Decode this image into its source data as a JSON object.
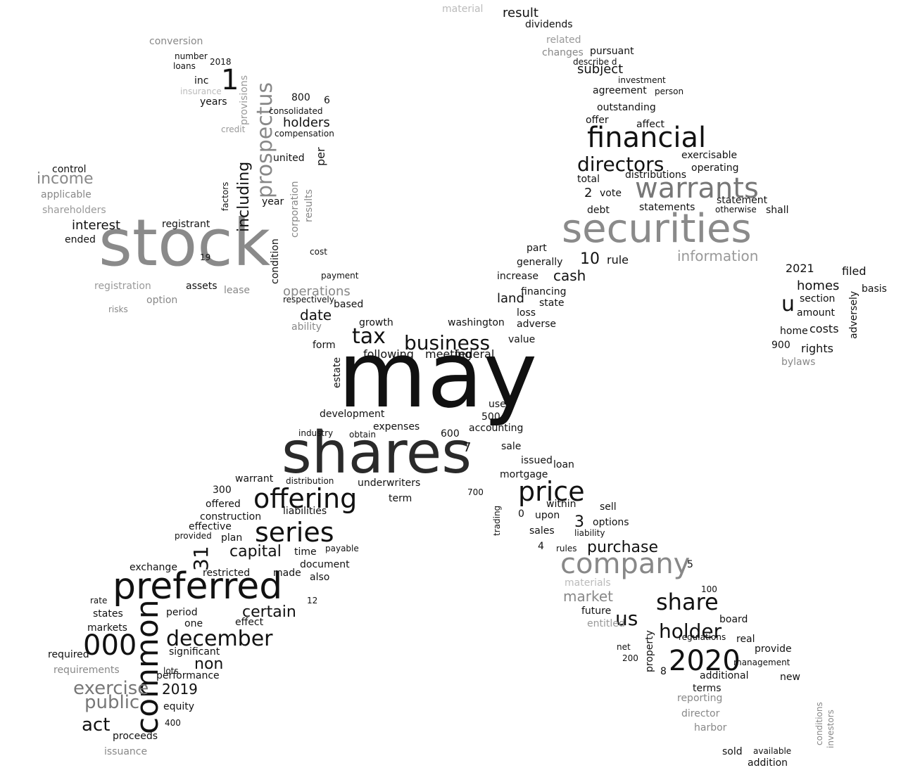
{
  "title": "Word cloud of securities filing terms",
  "colors": {
    "dark": "#111111",
    "mid": "#333333",
    "gray": "#888888",
    "light": "#bbbbbb",
    "background": "#ffffff"
  },
  "words": [
    {
      "text": "may",
      "size": 130,
      "color": "dark"
    },
    {
      "text": "shares",
      "size": 82,
      "color": "dark"
    },
    {
      "text": "stock",
      "size": 92,
      "color": "gray"
    },
    {
      "text": "securities",
      "size": 56,
      "color": "gray"
    },
    {
      "text": "warrants",
      "size": 40,
      "color": "gray"
    },
    {
      "text": "financial",
      "size": 40,
      "color": "dark"
    },
    {
      "text": "company",
      "size": 40,
      "color": "gray"
    },
    {
      "text": "preferred",
      "size": 52,
      "color": "dark"
    },
    {
      "text": "common",
      "size": 44,
      "color": "dark"
    },
    {
      "text": "offering",
      "size": 38,
      "color": "dark"
    },
    {
      "text": "series",
      "size": 38,
      "color": "dark"
    },
    {
      "text": "price",
      "size": 38,
      "color": "dark"
    },
    {
      "text": "000",
      "size": 40,
      "color": "dark"
    },
    {
      "text": "2020",
      "size": 40,
      "color": "dark"
    },
    {
      "text": "december",
      "size": 30,
      "color": "dark"
    },
    {
      "text": "share",
      "size": 32,
      "color": "dark"
    },
    {
      "text": "holder",
      "size": 28,
      "color": "dark"
    },
    {
      "text": "business",
      "size": 28,
      "color": "dark"
    },
    {
      "text": "tax",
      "size": 30,
      "color": "dark"
    },
    {
      "text": "directors",
      "size": 28,
      "color": "dark"
    },
    {
      "text": "exercise",
      "size": 26,
      "color": "gray"
    },
    {
      "text": "public",
      "size": 26,
      "color": "gray"
    },
    {
      "text": "act",
      "size": 26,
      "color": "dark"
    },
    {
      "text": "1",
      "size": 40,
      "color": "dark"
    },
    {
      "text": "prospectus",
      "size": 30,
      "color": "gray"
    },
    {
      "text": "including",
      "size": 22,
      "color": "dark"
    },
    {
      "text": "income",
      "size": 22,
      "color": "gray"
    },
    {
      "text": "u",
      "size": 30,
      "color": "dark"
    },
    {
      "text": "us",
      "size": 28,
      "color": "dark"
    },
    {
      "text": "31",
      "size": 28,
      "color": "dark"
    },
    {
      "text": "capital",
      "size": 22,
      "color": "dark"
    },
    {
      "text": "certain",
      "size": 22,
      "color": "dark"
    },
    {
      "text": "non",
      "size": 22,
      "color": "dark"
    },
    {
      "text": "market",
      "size": 20,
      "color": "gray"
    },
    {
      "text": "information",
      "size": 20,
      "color": "gray"
    },
    {
      "text": "subject",
      "size": 18,
      "color": "dark"
    },
    {
      "text": "result",
      "size": 18,
      "color": "dark"
    },
    {
      "text": "purchase",
      "size": 22,
      "color": "dark"
    },
    {
      "text": "operations",
      "size": 18,
      "color": "gray"
    },
    {
      "text": "date",
      "size": 20,
      "color": "dark"
    },
    {
      "text": "homes",
      "size": 18,
      "color": "dark"
    },
    {
      "text": "cash",
      "size": 20,
      "color": "dark"
    },
    {
      "text": "10",
      "size": 22,
      "color": "dark"
    },
    {
      "text": "2019",
      "size": 20,
      "color": "dark"
    },
    {
      "text": "3",
      "size": 22,
      "color": "dark"
    },
    {
      "text": "land",
      "size": 18,
      "color": "dark"
    },
    {
      "text": "holders",
      "size": 18,
      "color": "dark"
    },
    {
      "text": "interest",
      "size": 18,
      "color": "dark"
    },
    {
      "text": "registration",
      "size": 14,
      "color": "gray"
    },
    {
      "text": "shareholders",
      "size": 14,
      "color": "gray"
    },
    {
      "text": "applicable",
      "size": 14,
      "color": "gray"
    },
    {
      "text": "control",
      "size": 14,
      "color": "dark"
    },
    {
      "text": "conversion",
      "size": 14,
      "color": "gray"
    },
    {
      "text": "dividends",
      "size": 14,
      "color": "dark"
    },
    {
      "text": "outstanding",
      "size": 14,
      "color": "dark"
    },
    {
      "text": "agreement",
      "size": 14,
      "color": "dark"
    },
    {
      "text": "pursuant",
      "size": 14,
      "color": "dark"
    },
    {
      "text": "changes",
      "size": 14,
      "color": "gray"
    },
    {
      "text": "related",
      "size": 14,
      "color": "gray"
    },
    {
      "text": "material",
      "size": 14,
      "color": "light"
    },
    {
      "text": "total",
      "size": 14,
      "color": "dark"
    },
    {
      "text": "vote",
      "size": 14,
      "color": "dark"
    },
    {
      "text": "debt",
      "size": 14,
      "color": "dark"
    },
    {
      "text": "statements",
      "size": 14,
      "color": "dark"
    },
    {
      "text": "distributions",
      "size": 14,
      "color": "dark"
    },
    {
      "text": "exercisable",
      "size": 14,
      "color": "dark"
    },
    {
      "text": "operating",
      "size": 14,
      "color": "dark"
    },
    {
      "text": "statement",
      "size": 14,
      "color": "dark"
    },
    {
      "text": "otherwise",
      "size": 12,
      "color": "dark"
    },
    {
      "text": "shall",
      "size": 14,
      "color": "dark"
    },
    {
      "text": "filed",
      "size": 16,
      "color": "dark"
    },
    {
      "text": "2021",
      "size": 16,
      "color": "dark"
    },
    {
      "text": "basis",
      "size": 14,
      "color": "dark"
    },
    {
      "text": "amount",
      "size": 14,
      "color": "dark"
    },
    {
      "text": "section",
      "size": 14,
      "color": "dark"
    },
    {
      "text": "costs",
      "size": 16,
      "color": "dark"
    },
    {
      "text": "home",
      "size": 14,
      "color": "dark"
    },
    {
      "text": "rights",
      "size": 16,
      "color": "dark"
    },
    {
      "text": "900",
      "size": 14,
      "color": "dark"
    },
    {
      "text": "bylaws",
      "size": 14,
      "color": "gray"
    },
    {
      "text": "adversely",
      "size": 14,
      "color": "dark"
    },
    {
      "text": "offer",
      "size": 14,
      "color": "dark"
    },
    {
      "text": "affect",
      "size": 14,
      "color": "dark"
    },
    {
      "text": "rule",
      "size": 16,
      "color": "dark"
    },
    {
      "text": "2",
      "size": 18,
      "color": "dark"
    },
    {
      "text": "part",
      "size": 14,
      "color": "dark"
    },
    {
      "text": "generally",
      "size": 14,
      "color": "dark"
    },
    {
      "text": "increase",
      "size": 14,
      "color": "dark"
    },
    {
      "text": "financing",
      "size": 14,
      "color": "dark"
    },
    {
      "text": "state",
      "size": 14,
      "color": "dark"
    },
    {
      "text": "loss",
      "size": 14,
      "color": "dark"
    },
    {
      "text": "adverse",
      "size": 14,
      "color": "dark"
    },
    {
      "text": "washington",
      "size": 14,
      "color": "dark"
    },
    {
      "text": "value",
      "size": 14,
      "color": "dark"
    },
    {
      "text": "federal",
      "size": 16,
      "color": "dark"
    },
    {
      "text": "meeting",
      "size": 16,
      "color": "dark"
    },
    {
      "text": "following",
      "size": 16,
      "color": "dark"
    },
    {
      "text": "growth",
      "size": 14,
      "color": "dark"
    },
    {
      "text": "form",
      "size": 14,
      "color": "dark"
    },
    {
      "text": "based",
      "size": 14,
      "color": "dark"
    },
    {
      "text": "ability",
      "size": 14,
      "color": "gray"
    },
    {
      "text": "estate",
      "size": 14,
      "color": "dark"
    },
    {
      "text": "lease",
      "size": 14,
      "color": "gray"
    },
    {
      "text": "respectively",
      "size": 12,
      "color": "dark"
    },
    {
      "text": "payment",
      "size": 12,
      "color": "dark"
    },
    {
      "text": "cost",
      "size": 12,
      "color": "dark"
    },
    {
      "text": "condition",
      "size": 14,
      "color": "dark"
    },
    {
      "text": "assets",
      "size": 14,
      "color": "dark"
    },
    {
      "text": "option",
      "size": 14,
      "color": "gray"
    },
    {
      "text": "risks",
      "size": 12,
      "color": "gray"
    },
    {
      "text": "ended",
      "size": 14,
      "color": "dark"
    },
    {
      "text": "registrant",
      "size": 14,
      "color": "dark"
    },
    {
      "text": "year",
      "size": 14,
      "color": "dark"
    },
    {
      "text": "results",
      "size": 14,
      "color": "gray"
    },
    {
      "text": "corporation",
      "size": 14,
      "color": "gray"
    },
    {
      "text": "united",
      "size": 14,
      "color": "dark"
    },
    {
      "text": "per",
      "size": 16,
      "color": "dark"
    },
    {
      "text": "consolidated",
      "size": 12,
      "color": "dark"
    },
    {
      "text": "compensation",
      "size": 12,
      "color": "dark"
    },
    {
      "text": "provisions",
      "size": 14,
      "color": "gray"
    },
    {
      "text": "years",
      "size": 14,
      "color": "dark"
    },
    {
      "text": "inc",
      "size": 14,
      "color": "dark"
    },
    {
      "text": "2018",
      "size": 12,
      "color": "dark"
    },
    {
      "text": "loans",
      "size": 12,
      "color": "dark"
    },
    {
      "text": "number",
      "size": 12,
      "color": "dark"
    },
    {
      "text": "insurance",
      "size": 12,
      "color": "light"
    },
    {
      "text": "credit",
      "size": 12,
      "color": "gray"
    },
    {
      "text": "factors",
      "size": 12,
      "color": "dark"
    },
    {
      "text": "development",
      "size": 14,
      "color": "dark"
    },
    {
      "text": "expenses",
      "size": 14,
      "color": "dark"
    },
    {
      "text": "accounting",
      "size": 14,
      "color": "dark"
    },
    {
      "text": "500",
      "size": 14,
      "color": "dark"
    },
    {
      "text": "600",
      "size": 14,
      "color": "dark"
    },
    {
      "text": "obtain",
      "size": 12,
      "color": "dark"
    },
    {
      "text": "industry",
      "size": 12,
      "color": "dark"
    },
    {
      "text": "sale",
      "size": 14,
      "color": "dark"
    },
    {
      "text": "issued",
      "size": 14,
      "color": "dark"
    },
    {
      "text": "mortgage",
      "size": 14,
      "color": "dark"
    },
    {
      "text": "loan",
      "size": 14,
      "color": "dark"
    },
    {
      "text": "underwriters",
      "size": 14,
      "color": "dark"
    },
    {
      "text": "term",
      "size": 14,
      "color": "dark"
    },
    {
      "text": "liabilities",
      "size": 14,
      "color": "dark"
    },
    {
      "text": "construction",
      "size": 14,
      "color": "dark"
    },
    {
      "text": "effective",
      "size": 14,
      "color": "dark"
    },
    {
      "text": "offered",
      "size": 14,
      "color": "dark"
    },
    {
      "text": "warrant",
      "size": 14,
      "color": "dark"
    },
    {
      "text": "distribution",
      "size": 12,
      "color": "dark"
    },
    {
      "text": "plan",
      "size": 14,
      "color": "dark"
    },
    {
      "text": "time",
      "size": 14,
      "color": "dark"
    },
    {
      "text": "payable",
      "size": 12,
      "color": "dark"
    },
    {
      "text": "document",
      "size": 14,
      "color": "dark"
    },
    {
      "text": "also",
      "size": 14,
      "color": "dark"
    },
    {
      "text": "made",
      "size": 14,
      "color": "dark"
    },
    {
      "text": "restricted",
      "size": 14,
      "color": "dark"
    },
    {
      "text": "exchange",
      "size": 14,
      "color": "dark"
    },
    {
      "text": "period",
      "size": 14,
      "color": "dark"
    },
    {
      "text": "states",
      "size": 14,
      "color": "dark"
    },
    {
      "text": "markets",
      "size": 14,
      "color": "dark"
    },
    {
      "text": "required",
      "size": 14,
      "color": "dark"
    },
    {
      "text": "requirements",
      "size": 14,
      "color": "gray"
    },
    {
      "text": "significant",
      "size": 14,
      "color": "dark"
    },
    {
      "text": "performance",
      "size": 14,
      "color": "dark"
    },
    {
      "text": "equity",
      "size": 14,
      "color": "dark"
    },
    {
      "text": "proceeds",
      "size": 14,
      "color": "dark"
    },
    {
      "text": "issuance",
      "size": 14,
      "color": "gray"
    },
    {
      "text": "effect",
      "size": 14,
      "color": "dark"
    },
    {
      "text": "one",
      "size": 14,
      "color": "dark"
    },
    {
      "text": "provided",
      "size": 12,
      "color": "dark"
    },
    {
      "text": "upon",
      "size": 14,
      "color": "dark"
    },
    {
      "text": "within",
      "size": 14,
      "color": "dark"
    },
    {
      "text": "options",
      "size": 14,
      "color": "dark"
    },
    {
      "text": "sell",
      "size": 14,
      "color": "dark"
    },
    {
      "text": "sales",
      "size": 14,
      "color": "dark"
    },
    {
      "text": "liability",
      "size": 12,
      "color": "dark"
    },
    {
      "text": "rules",
      "size": 12,
      "color": "dark"
    },
    {
      "text": "trading",
      "size": 12,
      "color": "dark"
    },
    {
      "text": "materials",
      "size": 14,
      "color": "light"
    },
    {
      "text": "future",
      "size": 14,
      "color": "dark"
    },
    {
      "text": "entitled",
      "size": 14,
      "color": "gray"
    },
    {
      "text": "property",
      "size": 14,
      "color": "dark"
    },
    {
      "text": "board",
      "size": 14,
      "color": "dark"
    },
    {
      "text": "real",
      "size": 14,
      "color": "dark"
    },
    {
      "text": "provide",
      "size": 14,
      "color": "dark"
    },
    {
      "text": "management",
      "size": 12,
      "color": "dark"
    },
    {
      "text": "additional",
      "size": 14,
      "color": "dark"
    },
    {
      "text": "terms",
      "size": 14,
      "color": "dark"
    },
    {
      "text": "reporting",
      "size": 14,
      "color": "gray"
    },
    {
      "text": "director",
      "size": 14,
      "color": "gray"
    },
    {
      "text": "harbor",
      "size": 14,
      "color": "gray"
    },
    {
      "text": "sold",
      "size": 14,
      "color": "dark"
    },
    {
      "text": "addition",
      "size": 14,
      "color": "dark"
    },
    {
      "text": "available",
      "size": 12,
      "color": "dark"
    },
    {
      "text": "conditions",
      "size": 12,
      "color": "gray"
    },
    {
      "text": "investors",
      "size": 12,
      "color": "gray"
    },
    {
      "text": "new",
      "size": 14,
      "color": "dark"
    },
    {
      "text": "regulations",
      "size": 12,
      "color": "dark"
    },
    {
      "text": "use",
      "size": 14,
      "color": "dark"
    },
    {
      "text": "700",
      "size": 12,
      "color": "dark"
    },
    {
      "text": "0",
      "size": 14,
      "color": "dark"
    },
    {
      "text": "4",
      "size": 14,
      "color": "dark"
    },
    {
      "text": "5",
      "size": 14,
      "color": "dark"
    },
    {
      "text": "6",
      "size": 14,
      "color": "dark"
    },
    {
      "text": "7",
      "size": 18,
      "color": "dark"
    },
    {
      "text": "8",
      "size": 14,
      "color": "dark"
    },
    {
      "text": "100",
      "size": 12,
      "color": "dark"
    },
    {
      "text": "200",
      "size": 12,
      "color": "dark"
    },
    {
      "text": "300",
      "size": 14,
      "color": "dark"
    },
    {
      "text": "400",
      "size": 12,
      "color": "dark"
    },
    {
      "text": "800",
      "size": 14,
      "color": "dark"
    },
    {
      "text": "12",
      "size": 12,
      "color": "dark"
    },
    {
      "text": "19",
      "size": 12,
      "color": "dark"
    },
    {
      "text": "rate",
      "size": 12,
      "color": "dark"
    },
    {
      "text": "lots",
      "size": 12,
      "color": "dark"
    },
    {
      "text": "net",
      "size": 12,
      "color": "dark"
    },
    {
      "text": "person",
      "size": 12,
      "color": "dark"
    },
    {
      "text": "investment",
      "size": 12,
      "color": "dark"
    },
    {
      "text": "describe d",
      "size": 12,
      "color": "dark"
    }
  ]
}
